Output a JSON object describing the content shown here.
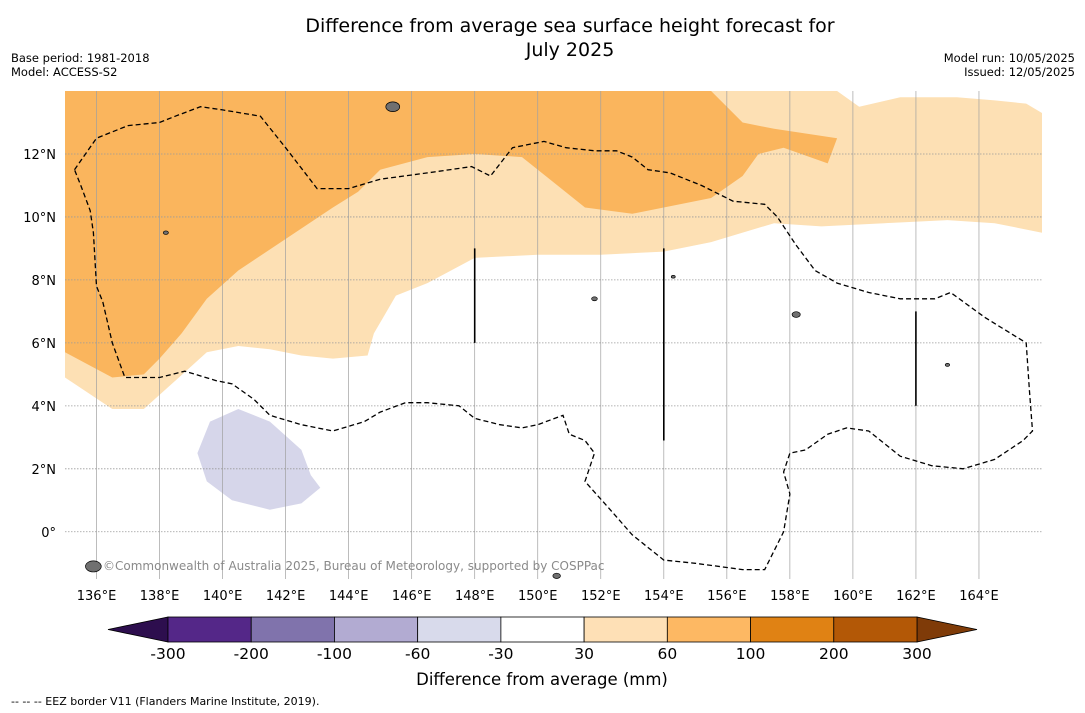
{
  "title_line1": "Difference from average sea surface height forecast for",
  "title_line2": "July 2025",
  "base_period": "Base period: 1981-2018",
  "model": "Model: ACCESS-S2",
  "model_run": "Model run: 10/05/2025",
  "issued": "Issued: 12/05/2025",
  "copyright": "©Commonwealth of Australia 2025, Bureau of Meteorology, supported by COSPPac",
  "map": {
    "lon_range": [
      135,
      166
    ],
    "lat_range": [
      -1.5,
      14
    ],
    "lon_ticks": [
      {
        "value": 136,
        "label": "136°E"
      },
      {
        "value": 138,
        "label": "138°E"
      },
      {
        "value": 140,
        "label": "140°E"
      },
      {
        "value": 142,
        "label": "142°E"
      },
      {
        "value": 144,
        "label": "144°E"
      },
      {
        "value": 146,
        "label": "146°E"
      },
      {
        "value": 148,
        "label": "148°E"
      },
      {
        "value": 150,
        "label": "150°E"
      },
      {
        "value": 152,
        "label": "152°E"
      },
      {
        "value": 154,
        "label": "154°E"
      },
      {
        "value": 156,
        "label": "156°E"
      },
      {
        "value": 158,
        "label": "158°E"
      },
      {
        "value": 160,
        "label": "160°E"
      },
      {
        "value": 162,
        "label": "162°E"
      },
      {
        "value": 164,
        "label": "164°E"
      }
    ],
    "lat_ticks": [
      {
        "value": 0,
        "label": "0°"
      },
      {
        "value": 2,
        "label": "2°N"
      },
      {
        "value": 4,
        "label": "4°N"
      },
      {
        "value": 6,
        "label": "6°N"
      },
      {
        "value": 8,
        "label": "8°N"
      },
      {
        "value": 10,
        "label": "10°N"
      },
      {
        "value": 12,
        "label": "12°N"
      }
    ],
    "regions": [
      {
        "name": "positive-30-to-60-region",
        "color": "#fde0b4",
        "coords": [
          [
            135,
            4.9
          ],
          [
            136.5,
            3.9
          ],
          [
            137.5,
            3.9
          ],
          [
            138.5,
            4.8
          ],
          [
            139.5,
            5.7
          ],
          [
            140.5,
            5.9
          ],
          [
            141.5,
            5.8
          ],
          [
            142.5,
            5.6
          ],
          [
            143.5,
            5.5
          ],
          [
            144.6,
            5.6
          ],
          [
            144.8,
            6.3
          ],
          [
            145.5,
            7.5
          ],
          [
            146.5,
            7.9
          ],
          [
            148,
            8.7
          ],
          [
            150,
            8.8
          ],
          [
            152,
            8.8
          ],
          [
            154,
            8.9
          ],
          [
            155.5,
            9.2
          ],
          [
            157.5,
            9.8
          ],
          [
            159,
            9.7
          ],
          [
            161,
            9.8
          ],
          [
            163,
            9.9
          ],
          [
            164.5,
            9.8
          ],
          [
            166,
            9.5
          ],
          [
            166,
            13.3
          ],
          [
            165.5,
            13.6
          ],
          [
            164.5,
            13.7
          ],
          [
            163.3,
            13.8
          ],
          [
            161.5,
            13.8
          ],
          [
            160.2,
            13.5
          ],
          [
            159.5,
            14
          ],
          [
            150,
            14
          ],
          [
            145,
            14
          ],
          [
            135,
            14
          ]
        ]
      },
      {
        "name": "positive-60-to-100-region",
        "color": "#fab55d",
        "coords": [
          [
            135,
            5.7
          ],
          [
            136.5,
            4.9
          ],
          [
            137.5,
            5.0
          ],
          [
            138,
            5.5
          ],
          [
            138.7,
            6.3
          ],
          [
            139.5,
            7.4
          ],
          [
            140.5,
            8.3
          ],
          [
            142,
            9.3
          ],
          [
            143.5,
            10.3
          ],
          [
            144.3,
            10.8
          ],
          [
            145,
            11.5
          ],
          [
            146.5,
            11.9
          ],
          [
            148,
            12.0
          ],
          [
            149.5,
            11.9
          ],
          [
            150.5,
            11.1
          ],
          [
            151.5,
            10.3
          ],
          [
            153,
            10.1
          ],
          [
            155.5,
            10.6
          ],
          [
            156.5,
            11.3
          ],
          [
            157,
            12.0
          ],
          [
            157.8,
            12.2
          ],
          [
            159.2,
            11.7
          ],
          [
            159.5,
            12.5
          ],
          [
            157.5,
            12.8
          ],
          [
            156.5,
            13.0
          ],
          [
            155.5,
            14
          ],
          [
            135,
            14
          ]
        ]
      },
      {
        "name": "negative-60-to-30-region",
        "color": "#d6d6ea",
        "coords": [
          [
            140.5,
            3.9
          ],
          [
            141.5,
            3.5
          ],
          [
            142.5,
            2.6
          ],
          [
            142.8,
            1.8
          ],
          [
            143.1,
            1.4
          ],
          [
            142.5,
            0.9
          ],
          [
            141.5,
            0.7
          ],
          [
            140.3,
            1.0
          ],
          [
            139.5,
            1.6
          ],
          [
            139.2,
            2.5
          ],
          [
            139.6,
            3.5
          ]
        ]
      }
    ],
    "eez_paths": [
      [
        [
          135.3,
          11.5
        ],
        [
          136,
          12.5
        ],
        [
          137,
          12.9
        ],
        [
          138,
          13.0
        ],
        [
          138.5,
          13.2
        ],
        [
          139.3,
          13.5
        ],
        [
          140,
          13.4
        ],
        [
          141.2,
          13.2
        ],
        [
          142,
          12.2
        ],
        [
          143,
          10.9
        ],
        [
          144,
          10.9
        ],
        [
          145,
          11.2
        ],
        [
          146.5,
          11.4
        ],
        [
          147.9,
          11.6
        ],
        [
          148.5,
          11.3
        ],
        [
          149.2,
          12.2
        ],
        [
          150.2,
          12.4
        ],
        [
          150.9,
          12.2
        ],
        [
          151.8,
          12.1
        ],
        [
          152.5,
          12.1
        ],
        [
          153,
          11.9
        ],
        [
          153.5,
          11.5
        ],
        [
          154.2,
          11.4
        ],
        [
          155.2,
          11.0
        ],
        [
          156.2,
          10.5
        ],
        [
          157.2,
          10.4
        ],
        [
          157.6,
          10.0
        ],
        [
          158.2,
          9.1
        ],
        [
          158.8,
          8.3
        ],
        [
          159.5,
          7.9
        ],
        [
          160.5,
          7.6
        ],
        [
          161.5,
          7.4
        ],
        [
          162.6,
          7.4
        ],
        [
          163.1,
          7.6
        ],
        [
          164.2,
          6.8
        ],
        [
          165.5,
          6.0
        ],
        [
          165.6,
          4.5
        ],
        [
          165.7,
          3.2
        ],
        [
          165.4,
          2.9
        ],
        [
          164.5,
          2.3
        ],
        [
          163.5,
          2.0
        ],
        [
          162.5,
          2.1
        ],
        [
          161.5,
          2.4
        ],
        [
          160.5,
          3.2
        ],
        [
          159.8,
          3.3
        ],
        [
          159.2,
          3.1
        ],
        [
          158.5,
          2.6
        ],
        [
          158,
          2.5
        ],
        [
          157.8,
          1.9
        ],
        [
          158,
          1.2
        ],
        [
          157.8,
          0.0
        ],
        [
          157.2,
          -1.2
        ],
        [
          156.5,
          -1.2
        ],
        [
          155,
          -1.0
        ],
        [
          154,
          -0.9
        ],
        [
          153.5,
          -0.5
        ],
        [
          153,
          -0.1
        ],
        [
          152.3,
          0.7
        ],
        [
          151.5,
          1.6
        ],
        [
          151.8,
          2.5
        ],
        [
          151.5,
          2.9
        ],
        [
          151,
          3.1
        ],
        [
          150.8,
          3.7
        ],
        [
          150,
          3.4
        ],
        [
          149.5,
          3.3
        ],
        [
          148.8,
          3.4
        ],
        [
          148,
          3.6
        ],
        [
          147.5,
          4.0
        ],
        [
          146.5,
          4.1
        ],
        [
          145.8,
          4.1
        ],
        [
          145,
          3.8
        ],
        [
          144.5,
          3.5
        ],
        [
          143.5,
          3.2
        ],
        [
          142.5,
          3.4
        ],
        [
          141.5,
          3.7
        ],
        [
          141,
          4.2
        ],
        [
          140.3,
          4.7
        ],
        [
          139.8,
          4.8
        ],
        [
          138.8,
          5.1
        ],
        [
          138,
          4.9
        ],
        [
          137.5,
          4.9
        ],
        [
          136.9,
          4.9
        ],
        [
          136.5,
          6.0
        ],
        [
          136.2,
          7.3
        ],
        [
          136,
          7.8
        ],
        [
          135.9,
          9.5
        ],
        [
          135.8,
          10.2
        ],
        [
          135.5,
          11.0
        ],
        [
          135.3,
          11.5
        ]
      ]
    ],
    "boundary_lines": [
      [
        [
          148,
          6.0
        ],
        [
          148,
          9.0
        ]
      ],
      [
        [
          154,
          2.9
        ],
        [
          154,
          9.0
        ]
      ],
      [
        [
          162,
          4.0
        ],
        [
          162,
          7.0
        ]
      ]
    ],
    "islands": [
      {
        "lon": 145.4,
        "lat": 13.5,
        "r": 0.22
      },
      {
        "lon": 138.2,
        "lat": 9.5,
        "r": 0.08
      },
      {
        "lon": 158.2,
        "lat": 6.9,
        "r": 0.13
      },
      {
        "lon": 163.0,
        "lat": 5.3,
        "r": 0.07
      },
      {
        "lon": 151.8,
        "lat": 7.4,
        "r": 0.09
      },
      {
        "lon": 154.3,
        "lat": 8.1,
        "r": 0.05
      },
      {
        "lon": 135.9,
        "lat": -1.1,
        "r": 0.25
      },
      {
        "lon": 150.6,
        "lat": -1.4,
        "r": 0.12
      }
    ]
  },
  "colorbar": {
    "title": "Difference from average (mm)",
    "min_color": "#2d0e4e",
    "max_color": "#7f3b08",
    "bins": [
      {
        "color": "#542788"
      },
      {
        "color": "#8073ac"
      },
      {
        "color": "#b2abd2"
      },
      {
        "color": "#d8daeb"
      },
      {
        "color": "#ffffff"
      },
      {
        "color": "#fee0b6"
      },
      {
        "color": "#fdb863"
      },
      {
        "color": "#e08214"
      },
      {
        "color": "#b35806"
      }
    ],
    "labels": [
      "-300",
      "-200",
      "-100",
      "-60",
      "-30",
      "30",
      "60",
      "100",
      "200",
      "300"
    ]
  },
  "footer": "--  --  -- EEZ border V11 (Flanders Marine Institute, 2019)."
}
